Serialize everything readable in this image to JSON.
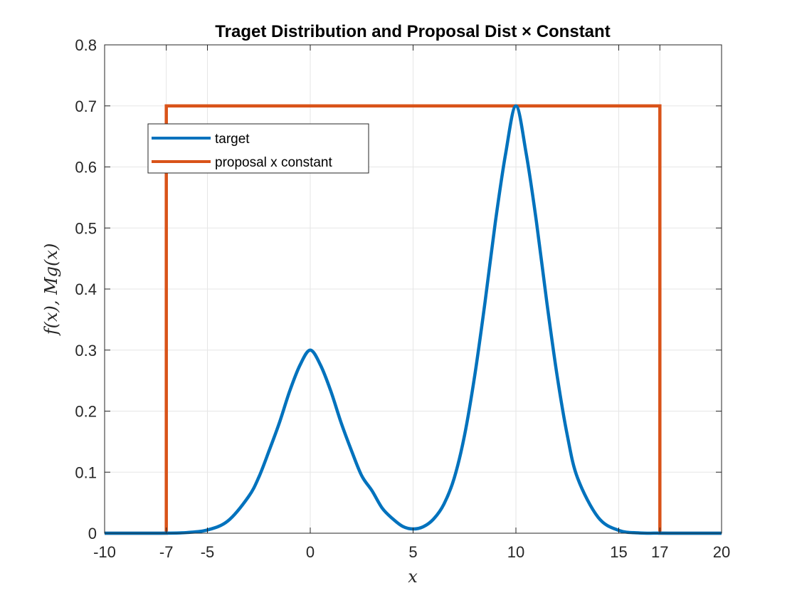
{
  "chart_data": {
    "type": "line",
    "title": "Traget Distribution and Proposal Dist × Constant",
    "xlabel": "x",
    "ylabel": "f(x), Mg(x)",
    "xlim": [
      -10,
      20
    ],
    "ylim": [
      0,
      0.8
    ],
    "xticks": [
      -10,
      -7,
      -5,
      0,
      5,
      10,
      15,
      17,
      20
    ],
    "xtick_labels": [
      "-10",
      "-7",
      "-5",
      "0",
      "5",
      "10",
      "15",
      "17",
      "20"
    ],
    "yticks": [
      0,
      0.1,
      0.2,
      0.3,
      0.4,
      0.5,
      0.6,
      0.7,
      0.8
    ],
    "ytick_labels": [
      "0",
      "0.1",
      "0.2",
      "0.3",
      "0.4",
      "0.5",
      "0.6",
      "0.7",
      "0.8"
    ],
    "grid": true,
    "legend_position": "top-left",
    "series": [
      {
        "name": "target",
        "color": "#0072BD",
        "x": [
          -10,
          -9,
          -8,
          -7,
          -6,
          -5,
          -4,
          -3,
          -2.5,
          -2,
          -1.5,
          -1,
          -0.5,
          0,
          0.5,
          1,
          1.5,
          2,
          2.5,
          3,
          3.5,
          4,
          4.5,
          5,
          5.5,
          6,
          6.5,
          7,
          7.5,
          8,
          8.5,
          9,
          9.5,
          10,
          10.5,
          11,
          11.5,
          12,
          12.5,
          13,
          14,
          15,
          16,
          17,
          18,
          19,
          20
        ],
        "y": [
          0,
          0,
          0,
          0.0001,
          0.0011,
          0.0053,
          0.0203,
          0.06,
          0.0919,
          0.1353,
          0.1811,
          0.2328,
          0.2753,
          0.3,
          0.2753,
          0.2328,
          0.1811,
          0.1357,
          0.0943,
          0.0697,
          0.041,
          0.0239,
          0.0111,
          0.007,
          0.0107,
          0.0234,
          0.0477,
          0.0903,
          0.1601,
          0.2588,
          0.379,
          0.5096,
          0.6218,
          0.7,
          0.6218,
          0.5096,
          0.379,
          0.2588,
          0.1601,
          0.0903,
          0.026,
          0.0047,
          0.0005,
          0.0001,
          0,
          0,
          0
        ]
      },
      {
        "name": "proposal x constant",
        "color": "#D95319",
        "x": [
          -10,
          -7,
          -7,
          17,
          17,
          20
        ],
        "y": [
          0,
          0,
          0.7,
          0.7,
          0,
          0
        ]
      }
    ]
  }
}
